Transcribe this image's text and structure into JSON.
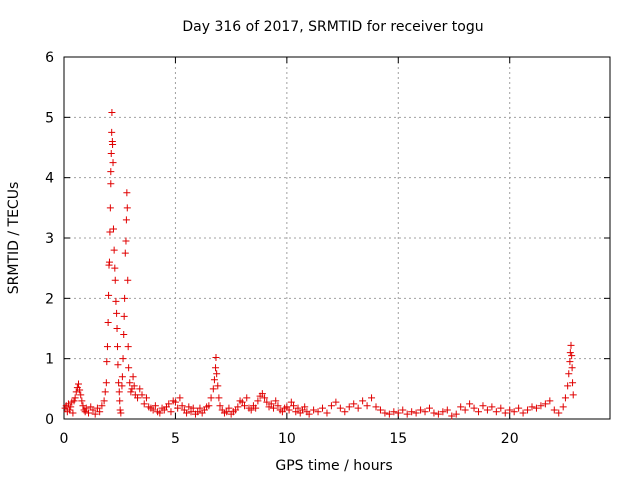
{
  "chart_data": {
    "type": "scatter",
    "title": "Day 316 of 2017, SRMTID for receiver togu",
    "xlabel": "GPS time / hours",
    "ylabel": "SRMTID / TECUs",
    "xlim": [
      0,
      24.5
    ],
    "ylim": [
      0,
      6
    ],
    "xticks": [
      0,
      5,
      10,
      15,
      20
    ],
    "yticks": [
      0,
      1,
      2,
      3,
      4,
      5,
      6
    ],
    "grid": true,
    "marker": "+",
    "color": "#e00000",
    "series": [
      {
        "name": "SRMTID",
        "points": [
          [
            0.05,
            0.18
          ],
          [
            0.1,
            0.22
          ],
          [
            0.15,
            0.12
          ],
          [
            0.2,
            0.25
          ],
          [
            0.25,
            0.15
          ],
          [
            0.3,
            0.2
          ],
          [
            0.35,
            0.28
          ],
          [
            0.4,
            0.1
          ],
          [
            0.45,
            0.3
          ],
          [
            0.5,
            0.35
          ],
          [
            0.55,
            0.45
          ],
          [
            0.6,
            0.52
          ],
          [
            0.65,
            0.58
          ],
          [
            0.7,
            0.48
          ],
          [
            0.75,
            0.4
          ],
          [
            0.8,
            0.3
          ],
          [
            0.85,
            0.22
          ],
          [
            0.9,
            0.15
          ],
          [
            0.95,
            0.12
          ],
          [
            1.0,
            0.18
          ],
          [
            1.1,
            0.1
          ],
          [
            1.2,
            0.2
          ],
          [
            1.3,
            0.15
          ],
          [
            1.4,
            0.08
          ],
          [
            1.5,
            0.18
          ],
          [
            1.6,
            0.12
          ],
          [
            1.7,
            0.22
          ],
          [
            1.8,
            0.3
          ],
          [
            1.85,
            0.45
          ],
          [
            1.9,
            0.6
          ],
          [
            1.92,
            0.95
          ],
          [
            1.95,
            1.2
          ],
          [
            1.98,
            1.6
          ],
          [
            2.0,
            2.05
          ],
          [
            2.02,
            2.55
          ],
          [
            2.04,
            2.6
          ],
          [
            2.06,
            3.1
          ],
          [
            2.08,
            3.5
          ],
          [
            2.1,
            3.9
          ],
          [
            2.1,
            4.1
          ],
          [
            2.12,
            4.4
          ],
          [
            2.14,
            4.75
          ],
          [
            2.15,
            5.08
          ],
          [
            2.17,
            4.6
          ],
          [
            2.18,
            4.55
          ],
          [
            2.2,
            4.25
          ],
          [
            2.22,
            3.15
          ],
          [
            2.25,
            2.8
          ],
          [
            2.28,
            2.5
          ],
          [
            2.3,
            2.3
          ],
          [
            2.33,
            1.95
          ],
          [
            2.36,
            1.75
          ],
          [
            2.38,
            1.5
          ],
          [
            2.4,
            1.2
          ],
          [
            2.42,
            0.9
          ],
          [
            2.45,
            0.6
          ],
          [
            2.48,
            0.45
          ],
          [
            2.5,
            0.3
          ],
          [
            2.52,
            0.15
          ],
          [
            2.55,
            0.1
          ],
          [
            2.6,
            0.55
          ],
          [
            2.62,
            0.7
          ],
          [
            2.65,
            1.0
          ],
          [
            2.68,
            1.4
          ],
          [
            2.7,
            1.7
          ],
          [
            2.72,
            2.0
          ],
          [
            2.75,
            2.75
          ],
          [
            2.78,
            2.95
          ],
          [
            2.8,
            3.3
          ],
          [
            2.82,
            3.75
          ],
          [
            2.84,
            3.5
          ],
          [
            2.86,
            2.3
          ],
          [
            2.88,
            1.2
          ],
          [
            2.9,
            0.85
          ],
          [
            2.95,
            0.6
          ],
          [
            3.0,
            0.45
          ],
          [
            3.05,
            0.5
          ],
          [
            3.1,
            0.7
          ],
          [
            3.15,
            0.55
          ],
          [
            3.2,
            0.4
          ],
          [
            3.3,
            0.35
          ],
          [
            3.4,
            0.5
          ],
          [
            3.5,
            0.4
          ],
          [
            3.6,
            0.25
          ],
          [
            3.7,
            0.35
          ],
          [
            3.8,
            0.2
          ],
          [
            3.9,
            0.18
          ],
          [
            4.0,
            0.15
          ],
          [
            4.1,
            0.22
          ],
          [
            4.2,
            0.12
          ],
          [
            4.3,
            0.1
          ],
          [
            4.4,
            0.18
          ],
          [
            4.5,
            0.15
          ],
          [
            4.6,
            0.2
          ],
          [
            4.7,
            0.25
          ],
          [
            4.8,
            0.12
          ],
          [
            4.9,
            0.3
          ],
          [
            5.0,
            0.28
          ],
          [
            5.1,
            0.18
          ],
          [
            5.2,
            0.35
          ],
          [
            5.3,
            0.22
          ],
          [
            5.4,
            0.15
          ],
          [
            5.5,
            0.1
          ],
          [
            5.6,
            0.2
          ],
          [
            5.7,
            0.12
          ],
          [
            5.8,
            0.18
          ],
          [
            5.9,
            0.08
          ],
          [
            6.0,
            0.12
          ],
          [
            6.1,
            0.18
          ],
          [
            6.2,
            0.1
          ],
          [
            6.3,
            0.15
          ],
          [
            6.4,
            0.2
          ],
          [
            6.5,
            0.22
          ],
          [
            6.6,
            0.35
          ],
          [
            6.7,
            0.5
          ],
          [
            6.75,
            0.65
          ],
          [
            6.8,
            0.85
          ],
          [
            6.82,
            1.02
          ],
          [
            6.85,
            0.75
          ],
          [
            6.9,
            0.55
          ],
          [
            6.95,
            0.35
          ],
          [
            7.0,
            0.22
          ],
          [
            7.1,
            0.15
          ],
          [
            7.2,
            0.1
          ],
          [
            7.3,
            0.12
          ],
          [
            7.4,
            0.18
          ],
          [
            7.5,
            0.08
          ],
          [
            7.6,
            0.12
          ],
          [
            7.7,
            0.15
          ],
          [
            7.8,
            0.2
          ],
          [
            7.9,
            0.3
          ],
          [
            8.0,
            0.28
          ],
          [
            8.1,
            0.22
          ],
          [
            8.2,
            0.35
          ],
          [
            8.3,
            0.18
          ],
          [
            8.4,
            0.15
          ],
          [
            8.5,
            0.22
          ],
          [
            8.6,
            0.18
          ],
          [
            8.7,
            0.3
          ],
          [
            8.8,
            0.38
          ],
          [
            8.9,
            0.42
          ],
          [
            9.0,
            0.35
          ],
          [
            9.1,
            0.28
          ],
          [
            9.2,
            0.2
          ],
          [
            9.3,
            0.25
          ],
          [
            9.4,
            0.18
          ],
          [
            9.5,
            0.3
          ],
          [
            9.6,
            0.22
          ],
          [
            9.7,
            0.15
          ],
          [
            9.8,
            0.12
          ],
          [
            9.9,
            0.18
          ],
          [
            10.0,
            0.2
          ],
          [
            10.1,
            0.15
          ],
          [
            10.2,
            0.28
          ],
          [
            10.3,
            0.22
          ],
          [
            10.4,
            0.12
          ],
          [
            10.5,
            0.18
          ],
          [
            10.6,
            0.1
          ],
          [
            10.7,
            0.15
          ],
          [
            10.8,
            0.2
          ],
          [
            10.9,
            0.12
          ],
          [
            11.0,
            0.08
          ],
          [
            11.2,
            0.15
          ],
          [
            11.4,
            0.12
          ],
          [
            11.6,
            0.18
          ],
          [
            11.8,
            0.1
          ],
          [
            12.0,
            0.22
          ],
          [
            12.2,
            0.28
          ],
          [
            12.4,
            0.18
          ],
          [
            12.6,
            0.12
          ],
          [
            12.8,
            0.2
          ],
          [
            13.0,
            0.25
          ],
          [
            13.2,
            0.18
          ],
          [
            13.4,
            0.3
          ],
          [
            13.6,
            0.22
          ],
          [
            13.8,
            0.35
          ],
          [
            14.0,
            0.2
          ],
          [
            14.2,
            0.15
          ],
          [
            14.4,
            0.1
          ],
          [
            14.6,
            0.08
          ],
          [
            14.8,
            0.12
          ],
          [
            15.0,
            0.1
          ],
          [
            15.2,
            0.15
          ],
          [
            15.4,
            0.08
          ],
          [
            15.6,
            0.12
          ],
          [
            15.8,
            0.1
          ],
          [
            16.0,
            0.15
          ],
          [
            16.2,
            0.12
          ],
          [
            16.4,
            0.18
          ],
          [
            16.6,
            0.1
          ],
          [
            16.8,
            0.08
          ],
          [
            17.0,
            0.12
          ],
          [
            17.2,
            0.15
          ],
          [
            17.4,
            0.05
          ],
          [
            17.6,
            0.08
          ],
          [
            17.8,
            0.2
          ],
          [
            18.0,
            0.15
          ],
          [
            18.2,
            0.25
          ],
          [
            18.4,
            0.18
          ],
          [
            18.6,
            0.12
          ],
          [
            18.8,
            0.22
          ],
          [
            19.0,
            0.15
          ],
          [
            19.2,
            0.2
          ],
          [
            19.4,
            0.12
          ],
          [
            19.6,
            0.18
          ],
          [
            19.8,
            0.1
          ],
          [
            20.0,
            0.15
          ],
          [
            20.2,
            0.12
          ],
          [
            20.4,
            0.18
          ],
          [
            20.6,
            0.1
          ],
          [
            20.8,
            0.15
          ],
          [
            21.0,
            0.2
          ],
          [
            21.2,
            0.18
          ],
          [
            21.4,
            0.22
          ],
          [
            21.6,
            0.25
          ],
          [
            21.8,
            0.3
          ],
          [
            22.0,
            0.15
          ],
          [
            22.2,
            0.1
          ],
          [
            22.4,
            0.2
          ],
          [
            22.5,
            0.35
          ],
          [
            22.6,
            0.55
          ],
          [
            22.65,
            0.75
          ],
          [
            22.7,
            0.95
          ],
          [
            22.72,
            1.1
          ],
          [
            22.75,
            1.22
          ],
          [
            22.78,
            1.05
          ],
          [
            22.8,
            0.85
          ],
          [
            22.82,
            0.6
          ],
          [
            22.85,
            0.4
          ]
        ]
      }
    ]
  }
}
